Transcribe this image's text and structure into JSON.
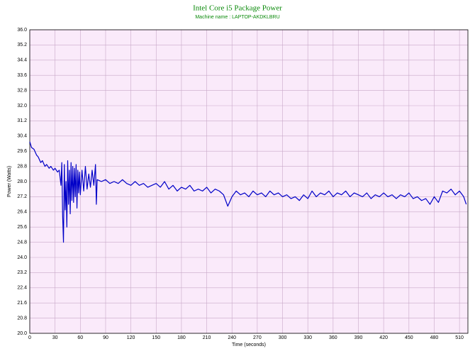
{
  "chart_data": {
    "type": "line",
    "title": "Intel Core i5 Package Power",
    "subtitle": "Machine name : LAPTOP-AKDKLBRU",
    "xlabel": "Time (seconds)",
    "ylabel": "Power (Watts)",
    "color": "#0000c8",
    "grid": true,
    "xlim": [
      0,
      520
    ],
    "ylim": [
      20,
      36
    ],
    "xticks": [
      0,
      30,
      60,
      90,
      120,
      150,
      180,
      210,
      240,
      270,
      300,
      330,
      360,
      390,
      420,
      450,
      480,
      510
    ],
    "yticks": [
      {
        "value": 20,
        "label": "20.0"
      },
      20.8,
      21.6,
      22.4,
      23.2,
      {
        "value": 24,
        "label": "24.0"
      },
      24.8,
      25.6,
      26.4,
      27.2,
      {
        "value": 28,
        "label": "28.0"
      },
      28.8,
      29.6,
      30.4,
      31.2,
      {
        "value": 32,
        "label": "32.0"
      },
      32.8,
      33.6,
      34.4,
      35.2,
      {
        "value": 36,
        "label": "36.0"
      }
    ],
    "x": [
      0,
      2,
      5,
      8,
      10,
      13,
      15,
      18,
      20,
      23,
      25,
      28,
      30,
      33,
      35,
      37,
      38,
      39,
      40,
      41,
      42,
      43,
      44,
      45,
      46,
      47,
      48,
      49,
      50,
      51,
      52,
      53,
      54,
      55,
      56,
      57,
      58,
      59,
      60,
      62,
      64,
      66,
      68,
      70,
      72,
      74,
      76,
      78,
      79,
      80,
      85,
      90,
      95,
      100,
      105,
      110,
      115,
      120,
      125,
      130,
      135,
      140,
      145,
      150,
      155,
      160,
      165,
      170,
      175,
      180,
      185,
      190,
      195,
      200,
      205,
      210,
      215,
      220,
      225,
      230,
      235,
      240,
      245,
      250,
      255,
      260,
      265,
      270,
      275,
      280,
      285,
      290,
      295,
      300,
      305,
      310,
      315,
      320,
      325,
      330,
      335,
      340,
      345,
      350,
      355,
      360,
      365,
      370,
      375,
      380,
      385,
      390,
      395,
      400,
      405,
      410,
      415,
      420,
      425,
      430,
      435,
      440,
      445,
      450,
      455,
      460,
      465,
      470,
      475,
      480,
      485,
      490,
      495,
      500,
      505,
      510,
      515,
      518
    ],
    "values": [
      30.1,
      29.8,
      29.7,
      29.4,
      29.3,
      29.0,
      29.1,
      28.8,
      28.9,
      28.7,
      28.8,
      28.6,
      28.7,
      28.5,
      28.6,
      27.8,
      29.0,
      26.2,
      24.8,
      28.9,
      26.5,
      28.0,
      25.6,
      29.1,
      26.8,
      28.6,
      26.3,
      29.0,
      27.0,
      28.8,
      26.9,
      28.7,
      27.2,
      28.9,
      26.6,
      28.6,
      27.4,
      28.5,
      27.3,
      28.6,
      27.5,
      28.8,
      27.6,
      28.4,
      27.7,
      28.6,
      27.8,
      28.9,
      26.8,
      28.1,
      28.0,
      28.1,
      27.9,
      28.0,
      27.9,
      28.1,
      27.9,
      27.8,
      28.0,
      27.8,
      27.9,
      27.7,
      27.8,
      27.9,
      27.7,
      28.0,
      27.6,
      27.8,
      27.5,
      27.7,
      27.6,
      27.8,
      27.5,
      27.6,
      27.5,
      27.7,
      27.4,
      27.6,
      27.5,
      27.3,
      26.7,
      27.2,
      27.5,
      27.3,
      27.4,
      27.2,
      27.5,
      27.3,
      27.4,
      27.2,
      27.5,
      27.3,
      27.4,
      27.2,
      27.3,
      27.1,
      27.2,
      27.0,
      27.3,
      27.1,
      27.5,
      27.2,
      27.4,
      27.3,
      27.5,
      27.2,
      27.4,
      27.3,
      27.5,
      27.2,
      27.4,
      27.3,
      27.2,
      27.4,
      27.1,
      27.3,
      27.2,
      27.4,
      27.2,
      27.3,
      27.1,
      27.3,
      27.2,
      27.4,
      27.1,
      27.2,
      27.0,
      27.1,
      26.8,
      27.2,
      26.9,
      27.5,
      27.4,
      27.6,
      27.3,
      27.5,
      27.2,
      26.8
    ]
  }
}
